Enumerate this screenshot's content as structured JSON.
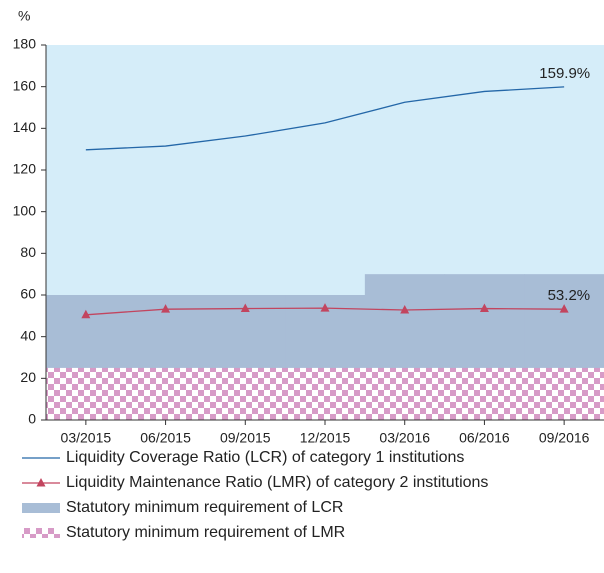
{
  "chart_data": {
    "type": "line",
    "y_unit_label": "%",
    "categories": [
      "03/2015",
      "06/2015",
      "09/2015",
      "12/2015",
      "03/2016",
      "06/2016",
      "09/2016"
    ],
    "ylim": [
      0,
      180
    ],
    "yticks": [
      0,
      20,
      40,
      60,
      80,
      100,
      120,
      140,
      160,
      180
    ],
    "plot_background": "#d5edf9",
    "series": [
      {
        "name": "Liquidity Coverage Ratio (LCR) of category 1 institutions",
        "type": "line",
        "color": "#2467a8",
        "values": [
          129.7,
          131.5,
          136.3,
          142.6,
          152.5,
          157.7,
          159.9
        ],
        "value_labels": [
          null,
          null,
          null,
          null,
          null,
          null,
          "159.9%"
        ]
      },
      {
        "name": "Liquidity Maintenance Ratio (LMR) of category 2 institutions",
        "type": "line",
        "color": "#c2455f",
        "marker": "triangle",
        "values": [
          50.5,
          53.2,
          53.5,
          53.7,
          52.8,
          53.5,
          53.2
        ],
        "value_labels": [
          null,
          null,
          null,
          null,
          null,
          null,
          "53.2%"
        ]
      },
      {
        "name": "Statutory minimum requirement of LCR",
        "type": "step_area",
        "color": "#a8bdd6",
        "values": [
          60,
          60,
          60,
          60,
          70,
          70,
          70
        ]
      },
      {
        "name": "Statutory minimum requirement of LMR",
        "type": "step_area",
        "color": "#d79bc7",
        "pattern": "checker",
        "values": [
          25,
          25,
          25,
          25,
          25,
          25,
          25
        ]
      }
    ]
  }
}
